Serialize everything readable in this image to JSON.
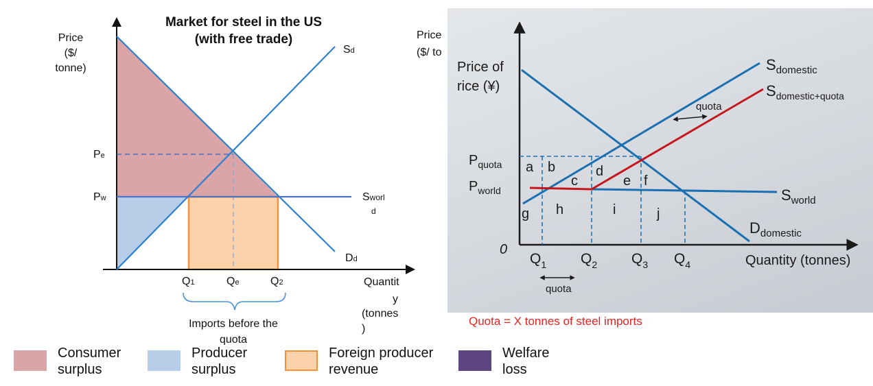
{
  "colors": {
    "consumer_surplus": "#dba5a8",
    "producer_surplus": "#b8cde8",
    "foreign_revenue_fill": "#fcd2aa",
    "foreign_revenue_border": "#f0923e",
    "welfare_loss": "#5c4581",
    "curve_blue": "#4a90d9",
    "quota_red": "#e8231f"
  },
  "left_chart": {
    "title_line1": "Market for steel in the US",
    "title_line2": "(with free trade)",
    "y_label_lines": [
      "Price",
      "($/",
      "tonne)"
    ],
    "x_label_lines": [
      "Quantit",
      "y",
      "(tonnes",
      ")"
    ],
    "supply_label": {
      "main": "S",
      "sub": "d"
    },
    "demand_label": {
      "main": "D",
      "sub": "d"
    },
    "world_supply_label": {
      "main": "S",
      "sub_line1": "worl",
      "sub_line2": "d"
    },
    "pe_label": {
      "main": "P",
      "sub": "e"
    },
    "pw_label": {
      "main": "P",
      "sub": "w"
    },
    "q1_label": {
      "main": "Q",
      "sub": "1"
    },
    "qe_label": {
      "main": "Q",
      "sub": "e"
    },
    "q2_label": {
      "main": "Q",
      "sub": "2"
    },
    "imports_label_lines": [
      "Imports before the",
      "quota"
    ]
  },
  "photo": {
    "behind_label_lines": [
      "Price",
      "($/ to"
    ],
    "y_label_lines": [
      "Price of",
      "rice (¥)"
    ],
    "s_domestic": {
      "main": "S",
      "sub": "domestic"
    },
    "s_domestic_quota": {
      "main": "S",
      "sub": "domestic+quota"
    },
    "s_world": {
      "main": "S",
      "sub": "world"
    },
    "d_domestic": {
      "main": "D",
      "sub": "domestic"
    },
    "quota_arrow_label": "quota",
    "quota_bottom_label": "quota",
    "p_quota": {
      "main": "P",
      "sub": "quota"
    },
    "p_world": {
      "main": "P",
      "sub": "world"
    },
    "origin": "0",
    "area_labels": [
      "a",
      "b",
      "c",
      "d",
      "e",
      "f",
      "g",
      "h",
      "i",
      "j"
    ],
    "q_labels": [
      {
        "main": "Q",
        "sub": "1"
      },
      {
        "main": "Q",
        "sub": "2"
      },
      {
        "main": "Q",
        "sub": "3"
      },
      {
        "main": "Q",
        "sub": "4"
      }
    ],
    "x_label": "Quantity (tonnes)"
  },
  "quota_note": "Quota = X tonnes of steel imports",
  "legend": [
    {
      "label_lines": [
        "Consumer",
        "surplus"
      ],
      "color_key": "consumer_surplus"
    },
    {
      "label_lines": [
        "Producer",
        "surplus"
      ],
      "color_key": "producer_surplus"
    },
    {
      "label_lines": [
        "Foreign producer",
        "revenue"
      ],
      "color_key": "foreign_revenue_fill"
    },
    {
      "label_lines": [
        "Welfare",
        "loss"
      ],
      "color_key": "welfare_loss"
    }
  ]
}
